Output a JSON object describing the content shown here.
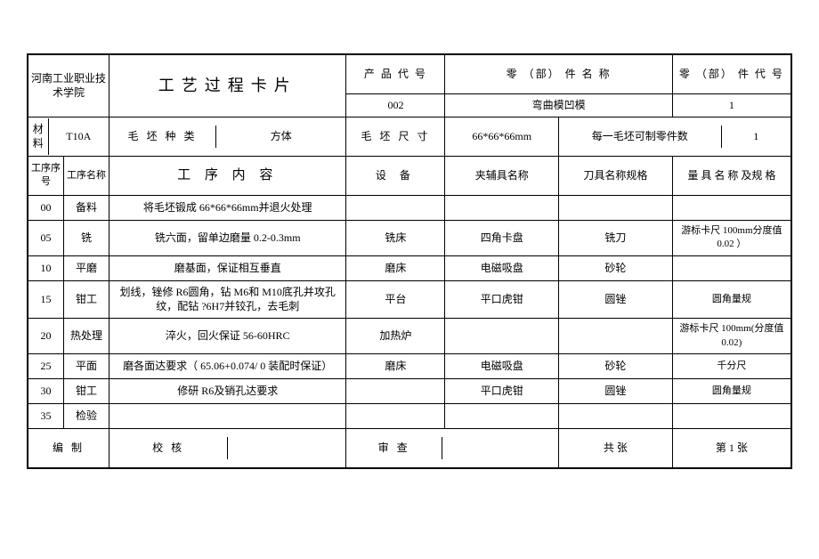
{
  "header": {
    "school": "河南工业职业技术学院",
    "title": "工艺过程卡片",
    "productCodeLabel": "产 品 代 号",
    "productCode": "002",
    "partNameLabel": "零 （部） 件 名 称",
    "partName": "弯曲模凹模",
    "partCodeLabel": "零 （部） 件 代 号",
    "partCode": "1"
  },
  "materialRow": {
    "materialLabel": "材料",
    "material": "T10A",
    "blankTypeLabel": "毛 坯 种 类",
    "blankType": "方体",
    "blankSizeLabel": "毛 坯 尺 寸",
    "blankSize": "66*66*66mm",
    "perBlankLabel": "每一毛坯可制零件数",
    "perBlank": "1"
  },
  "cols": {
    "seqNo": "工序序号",
    "seqName": "工序名称",
    "content": "工 序 内 容",
    "equip": "设 备",
    "fixture": "夹辅具名称",
    "tool": "刀具名称规格",
    "measure": "量 具 名 称 及规 格"
  },
  "rows": [
    {
      "no": "00",
      "name": "备料",
      "content": "将毛坯锻成 66*66*66mm并退火处理",
      "equip": "",
      "fixture": "",
      "tool": "",
      "measure": ""
    },
    {
      "no": "05",
      "name": "铣",
      "content": "铣六面，留单边磨量 0.2-0.3mm",
      "equip": "铣床",
      "fixture": "四角卡盘",
      "tool": "铣刀",
      "measure": "游标卡尺 100mm分度值 0.02 ）"
    },
    {
      "no": "10",
      "name": "平磨",
      "content": "磨基面，保证相互垂直",
      "equip": "磨床",
      "fixture": "电磁吸盘",
      "tool": "砂轮",
      "measure": ""
    },
    {
      "no": "15",
      "name": "钳工",
      "content": "划线，锉修 R6圆角，钻 M6和 M10底孔并攻孔纹，配钻 ?6H7并铰孔，去毛刺",
      "equip": "平台",
      "fixture": "平口虎钳",
      "tool": "圆锉",
      "measure": "圆角量规"
    },
    {
      "no": "20",
      "name": "热处理",
      "content": "淬火，回火保证 56-60HRC",
      "equip": "加热炉",
      "fixture": "",
      "tool": "",
      "measure": "游标卡尺 100mm(分度值 0.02)"
    },
    {
      "no": "25",
      "name": "平面",
      "content": "磨各面达要求（ 65.06+0.074/ 0 装配时保证）",
      "equip": "磨床",
      "fixture": "电磁吸盘",
      "tool": "砂轮",
      "measure": "千分尺"
    },
    {
      "no": "30",
      "name": "钳工",
      "content": "修研 R6及销孔达要求",
      "equip": "",
      "fixture": "平口虎钳",
      "tool": "圆锉",
      "measure": "圆角量规"
    },
    {
      "no": "35",
      "name": "检验",
      "content": "",
      "equip": "",
      "fixture": "",
      "tool": "",
      "measure": ""
    }
  ],
  "footer": {
    "compile": "编 制",
    "check": "校 核",
    "review": "审 查",
    "totalPages": "共  张",
    "pageNo": "第 1 张"
  }
}
